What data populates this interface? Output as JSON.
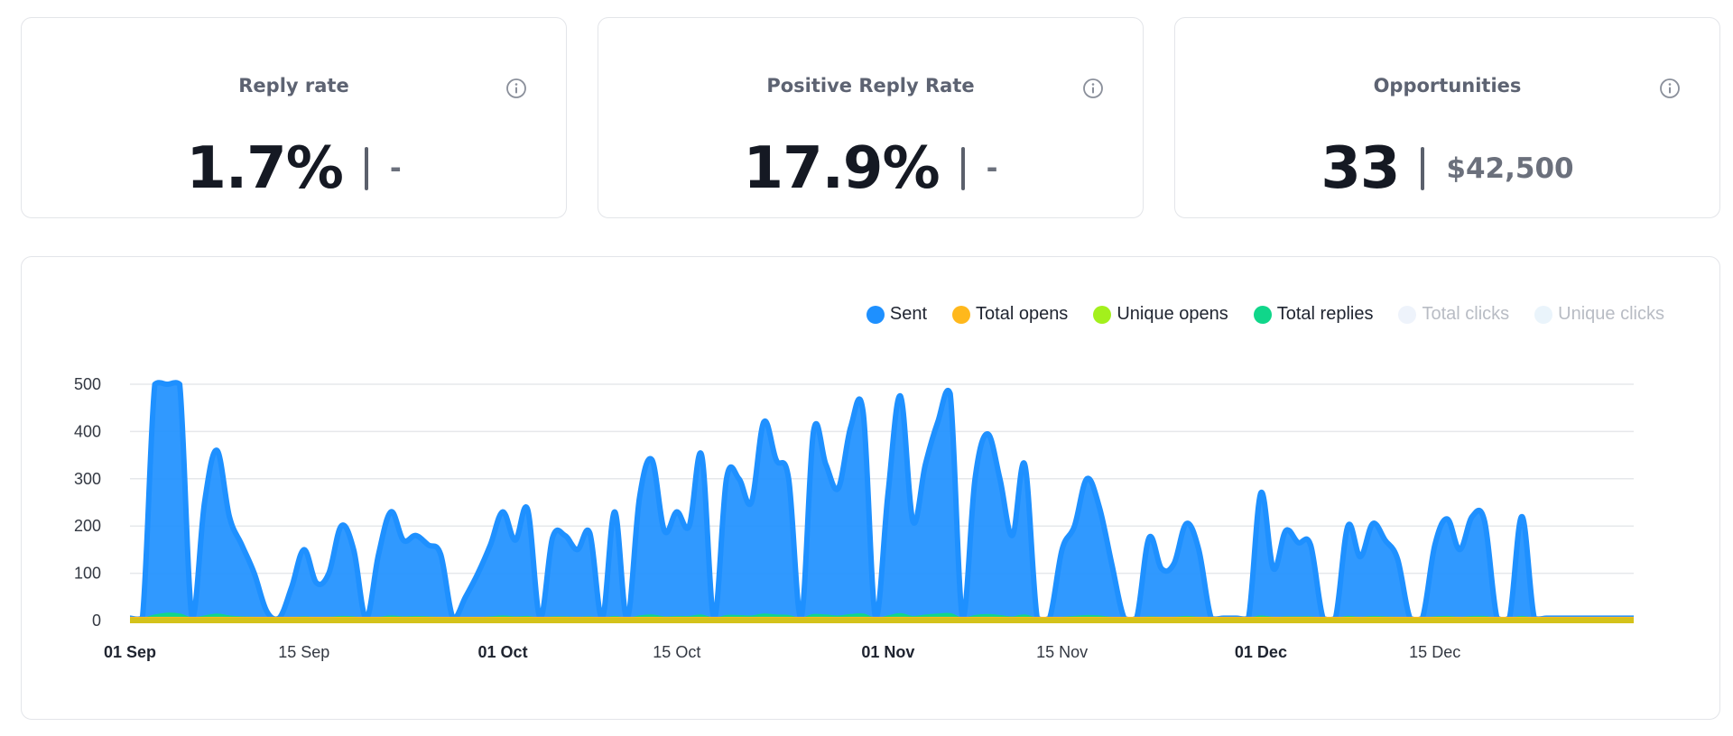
{
  "cards": [
    {
      "title": "Reply rate",
      "value": "1.7%",
      "secondary": "-"
    },
    {
      "title": "Positive Reply Rate",
      "value": "17.9%",
      "secondary": "-"
    },
    {
      "title": "Opportunities",
      "value": "33",
      "secondary": "$42,500"
    }
  ],
  "legend": [
    {
      "name": "Sent",
      "color": "#1e90ff",
      "active": true
    },
    {
      "name": "Total opens",
      "color": "#ffb81c",
      "active": true
    },
    {
      "name": "Unique opens",
      "color": "#a3f01c",
      "active": true
    },
    {
      "name": "Total replies",
      "color": "#10d68a",
      "active": true
    },
    {
      "name": "Total clicks",
      "color": "#eef3fb",
      "active": false
    },
    {
      "name": "Unique clicks",
      "color": "#eaf4fb",
      "active": false
    }
  ],
  "chart_data": {
    "type": "area",
    "title": "",
    "xlabel": "",
    "ylabel": "",
    "ylim": [
      0,
      500
    ],
    "yticks": [
      0,
      100,
      200,
      300,
      400,
      500
    ],
    "grid": true,
    "legend_position": "top-right",
    "xticks": [
      {
        "day": 0,
        "label": "01 Sep",
        "bold": true
      },
      {
        "day": 14,
        "label": "15 Sep",
        "bold": false
      },
      {
        "day": 30,
        "label": "01 Oct",
        "bold": true
      },
      {
        "day": 44,
        "label": "15 Oct",
        "bold": false
      },
      {
        "day": 61,
        "label": "01 Nov",
        "bold": true
      },
      {
        "day": 75,
        "label": "15 Nov",
        "bold": false
      },
      {
        "day": 91,
        "label": "01 Dec",
        "bold": true
      },
      {
        "day": 105,
        "label": "15 Dec",
        "bold": false
      }
    ],
    "x": [
      "2023-09-01",
      "2023-09-02",
      "2023-09-03",
      "2023-09-04",
      "2023-09-05",
      "2023-09-06",
      "2023-09-07",
      "2023-09-08",
      "2023-09-09",
      "2023-09-10",
      "2023-09-11",
      "2023-09-12",
      "2023-09-13",
      "2023-09-14",
      "2023-09-15",
      "2023-09-16",
      "2023-09-17",
      "2023-09-18",
      "2023-09-19",
      "2023-09-20",
      "2023-09-21",
      "2023-09-22",
      "2023-09-23",
      "2023-09-24",
      "2023-09-25",
      "2023-09-26",
      "2023-09-27",
      "2023-09-28",
      "2023-09-29",
      "2023-09-30",
      "2023-10-01",
      "2023-10-02",
      "2023-10-03",
      "2023-10-04",
      "2023-10-05",
      "2023-10-06",
      "2023-10-07",
      "2023-10-08",
      "2023-10-09",
      "2023-10-10",
      "2023-10-11",
      "2023-10-12",
      "2023-10-13",
      "2023-10-14",
      "2023-10-15",
      "2023-10-16",
      "2023-10-17",
      "2023-10-18",
      "2023-10-19",
      "2023-10-20",
      "2023-10-21",
      "2023-10-22",
      "2023-10-23",
      "2023-10-24",
      "2023-10-25",
      "2023-10-26",
      "2023-10-27",
      "2023-10-28",
      "2023-10-29",
      "2023-10-30",
      "2023-10-31",
      "2023-11-01",
      "2023-11-02",
      "2023-11-03",
      "2023-11-04",
      "2023-11-05",
      "2023-11-06",
      "2023-11-07",
      "2023-11-08",
      "2023-11-09",
      "2023-11-10",
      "2023-11-11",
      "2023-11-12",
      "2023-11-13",
      "2023-11-14",
      "2023-11-15",
      "2023-11-16",
      "2023-11-17",
      "2023-11-18",
      "2023-11-19",
      "2023-11-20",
      "2023-11-21",
      "2023-11-22",
      "2023-11-23",
      "2023-11-24",
      "2023-11-25",
      "2023-11-26",
      "2023-11-27",
      "2023-11-28",
      "2023-11-29",
      "2023-11-30",
      "2023-12-01",
      "2023-12-02",
      "2023-12-03",
      "2023-12-04",
      "2023-12-05",
      "2023-12-06",
      "2023-12-07",
      "2023-12-08",
      "2023-12-09",
      "2023-12-10",
      "2023-12-11",
      "2023-12-12",
      "2023-12-13",
      "2023-12-14",
      "2023-12-15",
      "2023-12-16",
      "2023-12-17",
      "2023-12-18",
      "2023-12-19",
      "2023-12-20",
      "2023-12-21",
      "2023-12-22",
      "2023-12-23",
      "2023-12-24",
      "2023-12-25",
      "2023-12-26",
      "2023-12-27",
      "2023-12-28",
      "2023-12-29",
      "2023-12-30",
      "2023-12-31"
    ],
    "series": [
      {
        "name": "Sent",
        "color": "#1e90ff",
        "values": [
          5,
          5,
          500,
          500,
          500,
          5,
          250,
          360,
          220,
          160,
          100,
          20,
          5,
          70,
          150,
          80,
          100,
          200,
          150,
          5,
          140,
          230,
          170,
          180,
          160,
          140,
          5,
          50,
          100,
          160,
          230,
          170,
          235,
          5,
          175,
          180,
          150,
          185,
          5,
          230,
          5,
          260,
          340,
          190,
          230,
          200,
          350,
          5,
          300,
          300,
          250,
          420,
          340,
          300,
          5,
          400,
          330,
          280,
          410,
          440,
          5,
          270,
          475,
          210,
          330,
          420,
          480,
          5,
          300,
          395,
          300,
          180,
          330,
          5,
          5,
          150,
          200,
          300,
          240,
          120,
          5,
          5,
          175,
          110,
          120,
          205,
          150,
          5,
          5,
          5,
          5,
          270,
          110,
          190,
          165,
          160,
          5,
          5,
          200,
          135,
          205,
          170,
          130,
          5,
          5,
          160,
          215,
          150,
          220,
          210,
          5,
          5,
          220,
          5,
          5,
          5,
          5,
          5,
          5,
          5,
          5,
          5
        ]
      },
      {
        "name": "Total opens",
        "color": "#ffb81c",
        "values": [
          3,
          3,
          3,
          3,
          3,
          3,
          3,
          3,
          3,
          3,
          3,
          3,
          3,
          3,
          3,
          3,
          3,
          3,
          3,
          3,
          3,
          3,
          3,
          3,
          3,
          3,
          3,
          3,
          3,
          3,
          3,
          3,
          3,
          3,
          3,
          3,
          3,
          3,
          3,
          3,
          3,
          3,
          3,
          3,
          3,
          3,
          3,
          3,
          3,
          3,
          3,
          3,
          3,
          3,
          3,
          3,
          3,
          3,
          3,
          3,
          3,
          3,
          3,
          3,
          3,
          3,
          3,
          3,
          3,
          3,
          3,
          3,
          3,
          3,
          3,
          3,
          3,
          3,
          3,
          3,
          3,
          3,
          3,
          3,
          3,
          3,
          3,
          3,
          3,
          3,
          3,
          3,
          3,
          3,
          3,
          3,
          3,
          3,
          3,
          3,
          3,
          3,
          3,
          3,
          3,
          3,
          3,
          3,
          3,
          3,
          3,
          3,
          3,
          3,
          3,
          3,
          3,
          3,
          3,
          3,
          3,
          3
        ]
      },
      {
        "name": "Unique opens",
        "color": "#a3f01c",
        "values": [
          2,
          2,
          2,
          2,
          2,
          2,
          2,
          2,
          2,
          2,
          2,
          2,
          2,
          2,
          2,
          2,
          2,
          2,
          2,
          2,
          2,
          2,
          2,
          2,
          2,
          2,
          2,
          2,
          2,
          2,
          2,
          2,
          2,
          2,
          2,
          2,
          2,
          2,
          2,
          2,
          2,
          2,
          2,
          2,
          2,
          2,
          2,
          2,
          2,
          2,
          2,
          2,
          2,
          2,
          2,
          2,
          2,
          2,
          2,
          2,
          2,
          2,
          2,
          2,
          2,
          2,
          2,
          2,
          2,
          2,
          2,
          2,
          2,
          2,
          2,
          2,
          2,
          2,
          2,
          2,
          2,
          2,
          2,
          2,
          2,
          2,
          2,
          2,
          2,
          2,
          2,
          2,
          2,
          2,
          2,
          2,
          2,
          2,
          2,
          2,
          2,
          2,
          2,
          2,
          2,
          2,
          2,
          2,
          2,
          2,
          2,
          2,
          2,
          2,
          2,
          2,
          2,
          2,
          2,
          2,
          2,
          2
        ]
      },
      {
        "name": "Total replies",
        "color": "#10d68a",
        "values": [
          1,
          1,
          8,
          12,
          10,
          2,
          6,
          10,
          6,
          4,
          3,
          1,
          1,
          2,
          4,
          2,
          3,
          5,
          4,
          1,
          3,
          6,
          4,
          5,
          4,
          3,
          1,
          1,
          2,
          4,
          6,
          4,
          5,
          1,
          4,
          4,
          3,
          4,
          1,
          5,
          1,
          6,
          8,
          4,
          5,
          5,
          8,
          1,
          7,
          7,
          6,
          10,
          8,
          7,
          1,
          9,
          8,
          6,
          9,
          10,
          1,
          6,
          11,
          5,
          8,
          10,
          11,
          1,
          7,
          9,
          7,
          4,
          8,
          1,
          1,
          3,
          5,
          7,
          6,
          3,
          1,
          1,
          4,
          3,
          3,
          5,
          3,
          1,
          1,
          1,
          1,
          6,
          3,
          4,
          4,
          4,
          1,
          1,
          5,
          3,
          5,
          4,
          3,
          1,
          1,
          4,
          5,
          3,
          5,
          5,
          1,
          1,
          5,
          1,
          1,
          1,
          1,
          1,
          1,
          1,
          1,
          1
        ]
      }
    ]
  }
}
